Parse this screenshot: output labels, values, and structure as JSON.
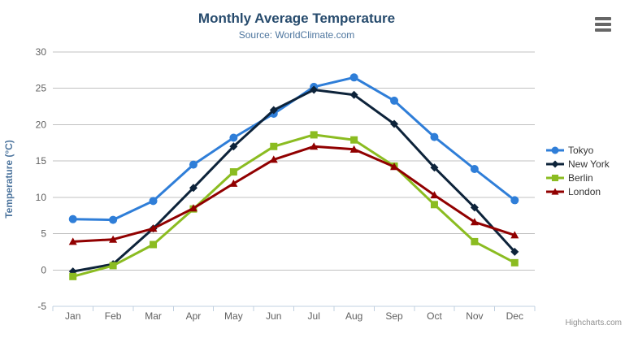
{
  "header": {
    "title": "Monthly Average Temperature",
    "subtitle": "Source: WorldClimate.com"
  },
  "credits": "Highcharts.com",
  "menu": {
    "icon": "hamburger-menu-icon"
  },
  "colors": {
    "title": "#274b6d",
    "subtitle": "#4d759e",
    "axis_label": "#606060",
    "axis_title": "#4d759e",
    "gridline": "#C0C0C0",
    "axis_line": "#C0D0E0",
    "legend_text": "#333333",
    "credits": "#909090",
    "menu_icon": "#666666",
    "background": "#FFFFFF"
  },
  "chart_data": {
    "type": "line",
    "title": "Monthly Average Temperature",
    "subtitle": "Source: WorldClimate.com",
    "categories": [
      "Jan",
      "Feb",
      "Mar",
      "Apr",
      "May",
      "Jun",
      "Jul",
      "Aug",
      "Sep",
      "Oct",
      "Nov",
      "Dec"
    ],
    "xlabel": "",
    "ylabel": "Temperature (°C)",
    "ylim": [
      -5,
      30
    ],
    "y_ticks": [
      -5,
      0,
      5,
      10,
      15,
      20,
      25,
      30
    ],
    "grid": true,
    "legend_position": "right-middle",
    "series": [
      {
        "name": "Tokyo",
        "color": "#2f7ed8",
        "marker": "circle",
        "values": [
          7.0,
          6.9,
          9.5,
          14.5,
          18.2,
          21.5,
          25.2,
          26.5,
          23.3,
          18.3,
          13.9,
          9.6
        ]
      },
      {
        "name": "New York",
        "color": "#0d233a",
        "marker": "diamond",
        "values": [
          -0.2,
          0.8,
          5.7,
          11.3,
          17.0,
          22.0,
          24.8,
          24.1,
          20.1,
          14.1,
          8.6,
          2.5
        ]
      },
      {
        "name": "Berlin",
        "color": "#8bbc21",
        "marker": "square",
        "values": [
          -0.9,
          0.6,
          3.5,
          8.4,
          13.5,
          17.0,
          18.6,
          17.9,
          14.3,
          9.0,
          3.9,
          1.0
        ]
      },
      {
        "name": "London",
        "color": "#910000",
        "marker": "triangle",
        "values": [
          3.9,
          4.2,
          5.7,
          8.5,
          11.9,
          15.2,
          17.0,
          16.6,
          14.2,
          10.3,
          6.6,
          4.8
        ]
      }
    ]
  }
}
